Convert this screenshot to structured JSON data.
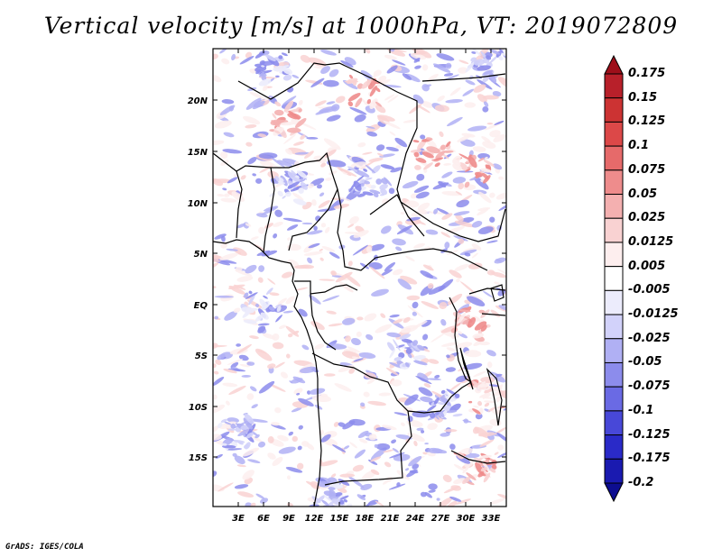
{
  "title": "Vertical velocity [m/s] at 1000hPa, VT: 2019072809",
  "credit": "GrADS: IGES/COLA",
  "map": {
    "lat_labels": [
      "20N",
      "15N",
      "10N",
      "5N",
      "EQ",
      "5S",
      "10S",
      "15S"
    ],
    "lon_labels": [
      "3E",
      "6E",
      "9E",
      "12E",
      "15E",
      "18E",
      "21E",
      "24E",
      "27E",
      "30E",
      "33E"
    ],
    "lat_range": [
      -20,
      25
    ],
    "lon_range": [
      0,
      35
    ]
  },
  "colorbar": {
    "labels": [
      "0.175",
      "0.15",
      "0.125",
      "0.1",
      "0.075",
      "0.05",
      "0.025",
      "0.0125",
      "0.005",
      "-0.005",
      "-0.0125",
      "-0.025",
      "-0.05",
      "-0.075",
      "-0.1",
      "-0.125",
      "-0.175",
      "-0.2"
    ],
    "colors": [
      "#9e0f1a",
      "#b8202a",
      "#cc3333",
      "#dc4848",
      "#e66a6a",
      "#ee8c8c",
      "#f4b0b0",
      "#f9d2d2",
      "#fdeeee",
      "#ffffff",
      "#ececfc",
      "#d2d2fa",
      "#b0b0f4",
      "#8c8cec",
      "#6a6ae4",
      "#4848d8",
      "#2a2ac8",
      "#1a1ab0",
      "#0d0d90"
    ]
  }
}
